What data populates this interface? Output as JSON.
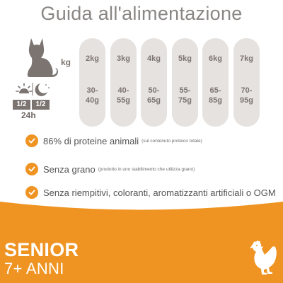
{
  "title": "Guida all'alimentazione",
  "table": {
    "weight_label": "kg",
    "portion_badges": [
      "1/2",
      "1/2"
    ],
    "period_label": "24h",
    "columns": [
      {
        "weight": "2kg",
        "amount_lines": [
          "30-",
          "40g"
        ]
      },
      {
        "weight": "3kg",
        "amount_lines": [
          "40-",
          "55g"
        ]
      },
      {
        "weight": "4kg",
        "amount_lines": [
          "50-",
          "65g"
        ]
      },
      {
        "weight": "5kg",
        "amount_lines": [
          "55-",
          "75g"
        ]
      },
      {
        "weight": "6kg",
        "amount_lines": [
          "65-",
          "85g"
        ]
      },
      {
        "weight": "7kg",
        "amount_lines": [
          "70-",
          "95g"
        ]
      }
    ]
  },
  "features": [
    {
      "text": "86% di proteine animali",
      "note": "(sul contenuto proteico totale)"
    },
    {
      "text": "Senza grano",
      "note": "(prodotto in uno stabilimento che utilizza grano)"
    },
    {
      "text": "Senza riempitivi, coloranti, aromatizzanti artificiali o OGM",
      "note": ""
    }
  ],
  "footer": {
    "line1": "SENIOR",
    "line2": "7+ ANNI"
  },
  "icons": {
    "cat": "cat-icon",
    "day_night": "sun-moon-icon",
    "check": "check-icon",
    "chicken": "chicken-icon"
  },
  "colors": {
    "accent_orange": "#ef9422",
    "pill_gray": "#e6e2df",
    "text_gray": "#7b7471"
  }
}
